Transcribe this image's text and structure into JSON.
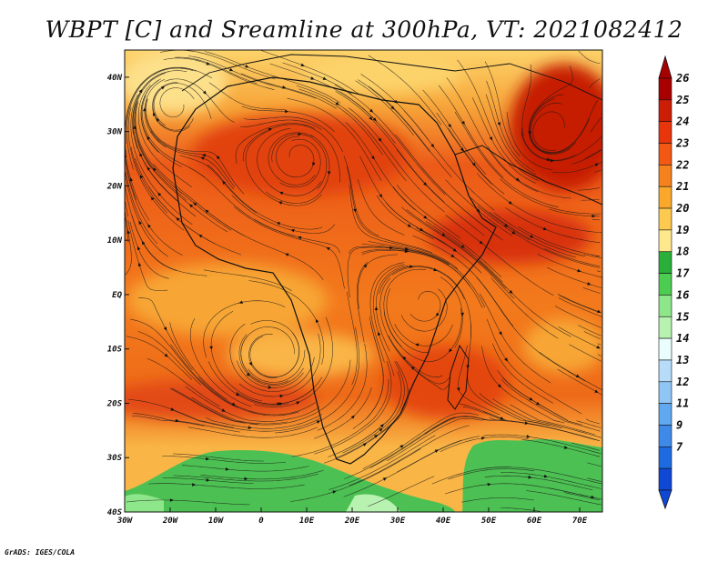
{
  "title": "WBPT [C] and Sreamline at 300hPa, VT: 2021082412",
  "footer": "GrADS: IGES/COLA",
  "map": {
    "lon_range": [
      -30,
      75
    ],
    "lat_range": [
      -40,
      45
    ],
    "x_ticks": [
      {
        "value": -30,
        "label": "30W"
      },
      {
        "value": -20,
        "label": "20W"
      },
      {
        "value": -10,
        "label": "10W"
      },
      {
        "value": 0,
        "label": "0"
      },
      {
        "value": 10,
        "label": "10E"
      },
      {
        "value": 20,
        "label": "20E"
      },
      {
        "value": 30,
        "label": "30E"
      },
      {
        "value": 40,
        "label": "40E"
      },
      {
        "value": 50,
        "label": "50E"
      },
      {
        "value": 60,
        "label": "60E"
      },
      {
        "value": 70,
        "label": "70E"
      }
    ],
    "y_ticks": [
      {
        "value": 40,
        "label": "40N"
      },
      {
        "value": 30,
        "label": "30N"
      },
      {
        "value": 20,
        "label": "20N"
      },
      {
        "value": 10,
        "label": "10N"
      },
      {
        "value": 0,
        "label": "EQ"
      },
      {
        "value": -10,
        "label": "10S"
      },
      {
        "value": -20,
        "label": "20S"
      },
      {
        "value": -30,
        "label": "30S"
      },
      {
        "value": -40,
        "label": "40S"
      }
    ]
  },
  "colorbar": {
    "labels": [
      "26",
      "25",
      "24",
      "23",
      "22",
      "21",
      "20",
      "19",
      "18",
      "17",
      "16",
      "15",
      "14",
      "13",
      "12",
      "11",
      "9",
      "7"
    ],
    "colors": [
      "#a80000",
      "#cc1e06",
      "#e8350c",
      "#f35814",
      "#f6821e",
      "#f9a82c",
      "#fdca4f",
      "#fde88e",
      "#2ab03a",
      "#4ccc50",
      "#8ee68a",
      "#b8f2b0",
      "#eafefe",
      "#b6dcfa",
      "#90c6f6",
      "#60a8f0",
      "#3f8ae8",
      "#1e6ae0",
      "#1048d6"
    ],
    "top_arrow_color": "#a80000",
    "bottom_arrow_color": "#1048d6"
  }
}
